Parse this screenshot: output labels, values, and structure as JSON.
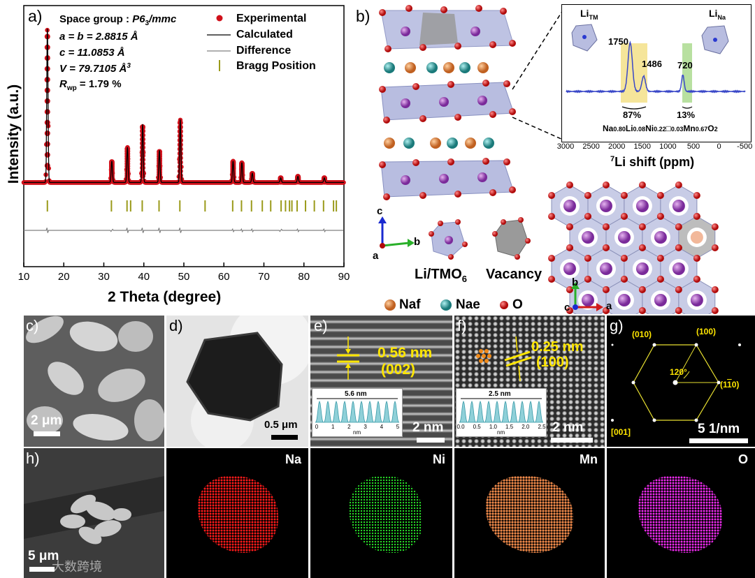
{
  "panel_a": {
    "label": "a)",
    "legend": {
      "space_group_prefix": "Space group : ",
      "space_group": "P6",
      "space_group_sub": "3",
      "space_group_suffix": "/mmc",
      "lattice_ab": "a = b = 2.8815 Å",
      "lattice_c": "c = 11.0853 Å",
      "volume": "V = 79.7105 Å",
      "volume_sup": "3",
      "rwp_prefix": "R",
      "rwp_sub": "wp",
      "rwp_value": " = 1.79 %",
      "experimental": "Experimental",
      "calculated": "Calculated",
      "difference": "Difference",
      "bragg": "Bragg Position"
    }
  },
  "chart_data": {
    "type": "line",
    "title": "",
    "xlabel": "2 Theta (degree)",
    "ylabel": "Intensity (a.u.)",
    "xlim": [
      10,
      90
    ],
    "xticks": [
      "10",
      "20",
      "30",
      "40",
      "50",
      "60",
      "70",
      "80",
      "90"
    ],
    "ylim": [
      0,
      100
    ],
    "baseline": 3,
    "peaks": [
      {
        "x": 15.9,
        "y": 100
      },
      {
        "x": 32.0,
        "y": 14
      },
      {
        "x": 35.9,
        "y": 23
      },
      {
        "x": 39.7,
        "y": 38
      },
      {
        "x": 43.9,
        "y": 21
      },
      {
        "x": 49.1,
        "y": 41
      },
      {
        "x": 62.3,
        "y": 14
      },
      {
        "x": 64.5,
        "y": 13
      },
      {
        "x": 67.1,
        "y": 6
      },
      {
        "x": 74.2,
        "y": 3
      },
      {
        "x": 78.5,
        "y": 4
      },
      {
        "x": 85.1,
        "y": 3
      }
    ],
    "bragg_positions": [
      15.9,
      31.9,
      35.8,
      36.7,
      39.6,
      43.8,
      49.0,
      55.3,
      62.2,
      64.4,
      66.9,
      69.6,
      71.7,
      74.3,
      75.4,
      76.4,
      77.0,
      78.3,
      80.4,
      82.6,
      84.9,
      87.4,
      88.1
    ],
    "series": [
      {
        "name": "Experimental",
        "color": "#d0101a"
      },
      {
        "name": "Calculated",
        "color": "#000000"
      },
      {
        "name": "Difference",
        "color": "#808080"
      },
      {
        "name": "Bragg Position",
        "color": "#9a9a1a"
      }
    ]
  },
  "panel_b": {
    "label": "b)",
    "axes_c": "c",
    "axes_b": "b",
    "axes_a": "a",
    "poly_label": "Li/TMO",
    "poly_label_sub": "6",
    "vacancy": "Vacancy",
    "legend_naf": "Naf",
    "legend_nae": "Nae",
    "legend_o": "O",
    "hex_axes_b": "b",
    "hex_axes_c": "c",
    "hex_axes_a": "a",
    "nmr": {
      "li_tm": "Li",
      "li_tm_sub": "TM",
      "li_na": "Li",
      "li_na_sub": "Na",
      "peak1": "1750",
      "peak2": "1486",
      "peak3": "720",
      "pct1": "87%",
      "pct2": "13%",
      "formula_parts": [
        "Na",
        "0.80",
        "Li",
        "0.08",
        "Ni",
        "0.22",
        "□",
        "0.03",
        "Mn",
        "0.67",
        "O",
        "2"
      ],
      "xticks": [
        "3000",
        "2500",
        "2000",
        "1500",
        "1000",
        "500",
        "0",
        "-500"
      ],
      "xlabel_sup": "7",
      "xlabel": "Li shift (ppm)"
    }
  },
  "panel_c": {
    "label": "c)",
    "scale": "2 μm"
  },
  "panel_d": {
    "label": "d)",
    "scale": "0.5 μm"
  },
  "panel_e": {
    "label": "e)",
    "d_spacing": "0.56 nm",
    "plane": "(002)",
    "profile_width": "5.6 nm",
    "profile_ticks": [
      "0",
      "1",
      "2",
      "3",
      "4",
      "5"
    ],
    "profile_unit": "nm",
    "scale": "2 nm"
  },
  "panel_f": {
    "label": "f)",
    "d_spacing": "0.25 nm",
    "plane": "(100)",
    "profile_width": "2.5 nm",
    "profile_ticks": [
      "0.0",
      "0.5",
      "1.0",
      "1.5",
      "2.0",
      "2.5"
    ],
    "profile_unit": "nm",
    "scale": "2 nm"
  },
  "panel_g": {
    "label": "g)",
    "spot_010": "(010)",
    "spot_100": "(100)",
    "spot_1m10": "(1",
    "spot_1m10_bar": "1",
    "spot_1m10_end": "0)",
    "angle": "120°",
    "zone": "[001]",
    "scale": "5 1/nm"
  },
  "panel_h": {
    "label": "h)",
    "scale": "5 μm",
    "maps": [
      "Na",
      "Ni",
      "Mn",
      "O"
    ]
  },
  "watermark": "大数跨境",
  "colors": {
    "experimental": "#d0101a",
    "naf": "#e07a3a",
    "nae": "#3aa5a5",
    "oxygen": "#d21a1a",
    "yellow": "#ffe600",
    "nmr_line": "#3a48c8"
  }
}
